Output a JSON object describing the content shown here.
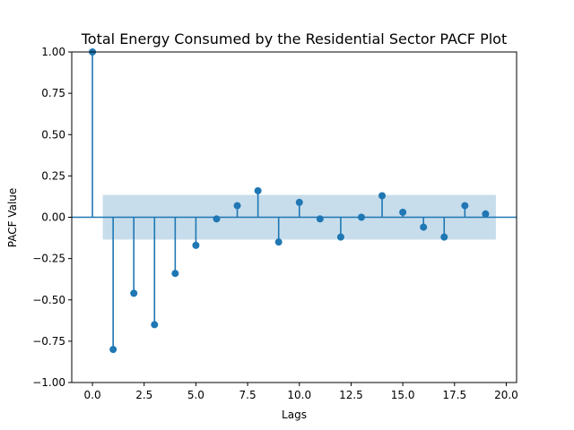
{
  "chart_data": {
    "type": "scatter",
    "title": "Total Energy Consumed by the Residential Sector PACF Plot",
    "xlabel": "Lags",
    "ylabel": "PACF Value",
    "xlim": [
      -1,
      20.5
    ],
    "ylim": [
      -1.0,
      1.0
    ],
    "x_ticks": [
      0.0,
      2.5,
      5.0,
      7.5,
      10.0,
      12.5,
      15.0,
      17.5,
      20.0
    ],
    "x_tick_labels": [
      "0.0",
      "2.5",
      "5.0",
      "7.5",
      "10.0",
      "12.5",
      "15.0",
      "17.5",
      "20.0"
    ],
    "y_ticks": [
      -1.0,
      -0.75,
      -0.5,
      -0.25,
      0.0,
      0.25,
      0.5,
      0.75,
      1.0
    ],
    "y_tick_labels": [
      "−1.00",
      "−0.75",
      "−0.50",
      "−0.25",
      "0.00",
      "0.25",
      "0.50",
      "0.75",
      "1.00"
    ],
    "lags": [
      0,
      1,
      2,
      3,
      4,
      5,
      6,
      7,
      8,
      9,
      10,
      11,
      12,
      13,
      14,
      15,
      16,
      17,
      18,
      19
    ],
    "values": [
      1.0,
      -0.8,
      -0.46,
      -0.65,
      -0.34,
      -0.17,
      -0.01,
      0.07,
      0.16,
      -0.15,
      0.09,
      -0.01,
      -0.12,
      0.0,
      0.13,
      0.03,
      -0.06,
      -0.12,
      0.07,
      0.02
    ],
    "confidence_band": {
      "x_range": [
        0.5,
        19.5
      ],
      "lower": -0.135,
      "upper": 0.135
    },
    "grid": false,
    "colors": {
      "stem": "#1f77b4",
      "marker": "#1f77b4",
      "band": "#1f77b4",
      "zero_line": "#1f77b4"
    }
  }
}
